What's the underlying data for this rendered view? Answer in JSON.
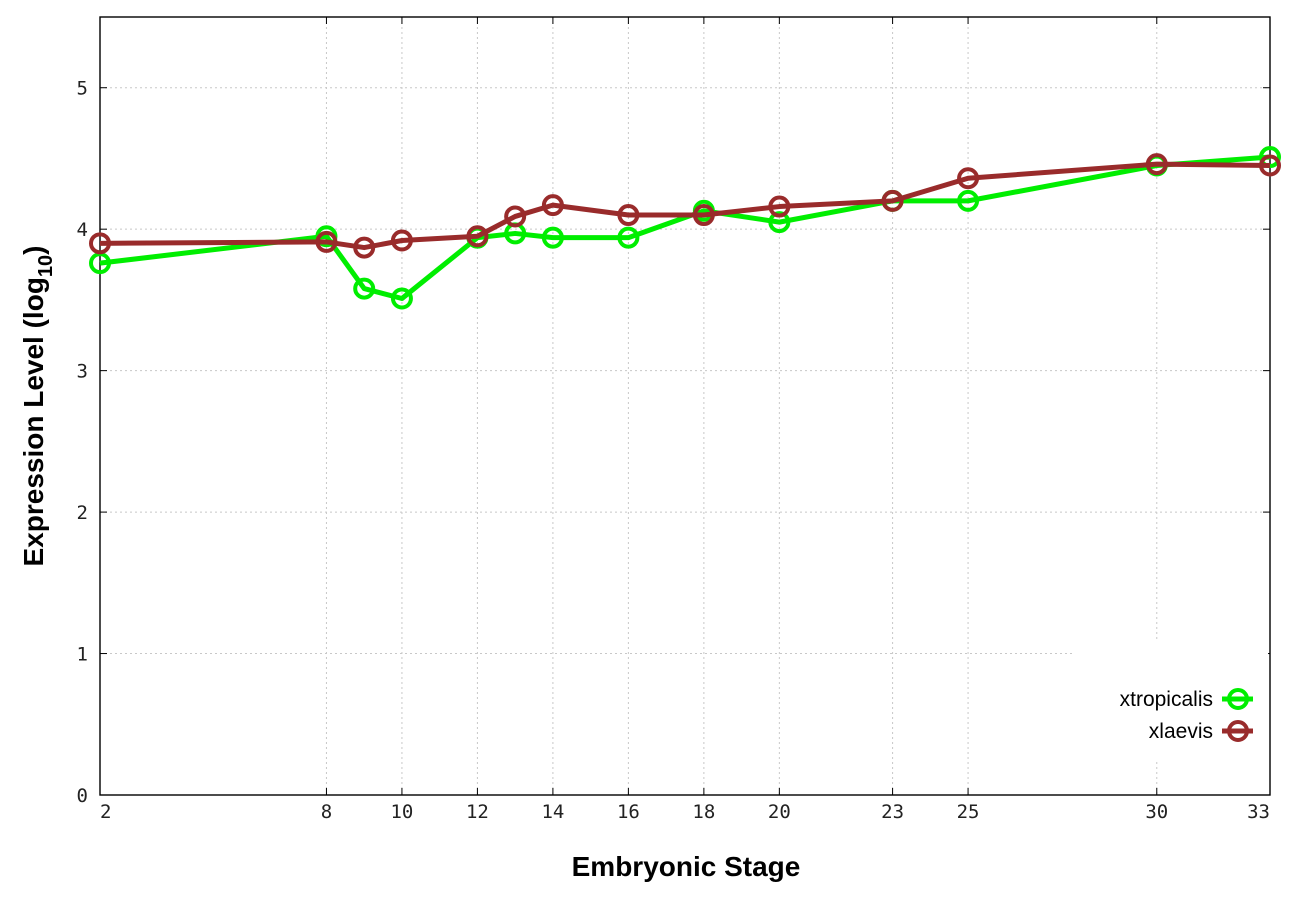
{
  "chart_data": {
    "type": "line",
    "xlabel": "Embryonic Stage",
    "ylabel_main": "Expression Level (log",
    "ylabel_sub": "10",
    "ylabel_close": ")",
    "x": [
      2,
      8,
      9,
      10,
      12,
      13,
      14,
      16,
      18,
      20,
      23,
      25,
      30,
      33
    ],
    "xticks": [
      2,
      8,
      10,
      12,
      14,
      16,
      18,
      20,
      23,
      25,
      30,
      33
    ],
    "xlim": [
      2,
      33
    ],
    "yticks": [
      0,
      1,
      2,
      3,
      4,
      5
    ],
    "ylim": [
      0,
      5.5
    ],
    "grid": true,
    "legend_position": "bottom-right",
    "series": [
      {
        "name": "xtropicalis",
        "color": "#00ee00",
        "values": [
          3.76,
          3.95,
          3.58,
          3.51,
          3.94,
          3.97,
          3.94,
          3.94,
          4.13,
          4.05,
          4.2,
          4.2,
          4.45,
          4.51
        ]
      },
      {
        "name": "xlaevis",
        "color": "#992b2b",
        "values": [
          3.9,
          3.91,
          3.87,
          3.92,
          3.95,
          4.09,
          4.17,
          4.1,
          4.1,
          4.16,
          4.2,
          4.36,
          4.46,
          4.45
        ]
      }
    ]
  }
}
